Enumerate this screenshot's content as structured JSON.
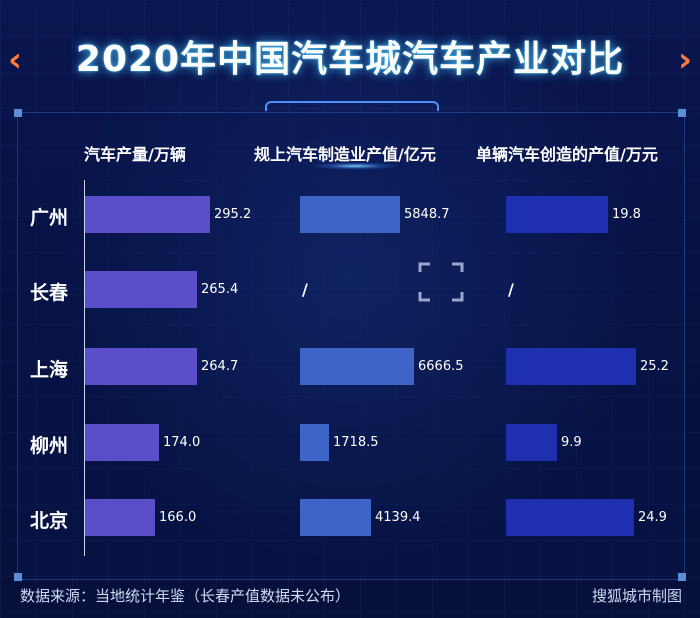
{
  "title": "2020年中国汽车城汽车产业对比",
  "footer": {
    "source": "数据来源：当地统计年鉴（长春产值数据未公布）",
    "credit": "搜狐城市制图"
  },
  "colors": {
    "background": "#06103a",
    "title_glow": "#37c8ff",
    "chevron": "#ff7a3c",
    "series": [
      "#5a4fc9",
      "#3f64c8",
      "#1e2fb0"
    ]
  },
  "chart_data": {
    "type": "bar",
    "orientation": "horizontal",
    "categories": [
      "广州",
      "长春",
      "上海",
      "柳州",
      "北京"
    ],
    "series": [
      {
        "name": "汽车产量/万辆",
        "values": [
          295.2,
          265.4,
          264.7,
          174.0,
          166.0
        ],
        "labels": [
          "295.2",
          "265.4",
          "264.7",
          "174.0",
          "166.0"
        ]
      },
      {
        "name": "规上汽车制造业产值/亿元",
        "values": [
          5848.7,
          null,
          6666.5,
          1718.5,
          4139.4
        ],
        "labels": [
          "5848.7",
          "/",
          "6666.5",
          "1718.5",
          "4139.4"
        ]
      },
      {
        "name": "单辆汽车创造的产值/万元",
        "values": [
          19.8,
          null,
          25.2,
          9.9,
          24.9
        ],
        "labels": [
          "19.8",
          "/",
          "25.2",
          "9.9",
          "24.9"
        ]
      }
    ],
    "missing_marker": "/"
  }
}
